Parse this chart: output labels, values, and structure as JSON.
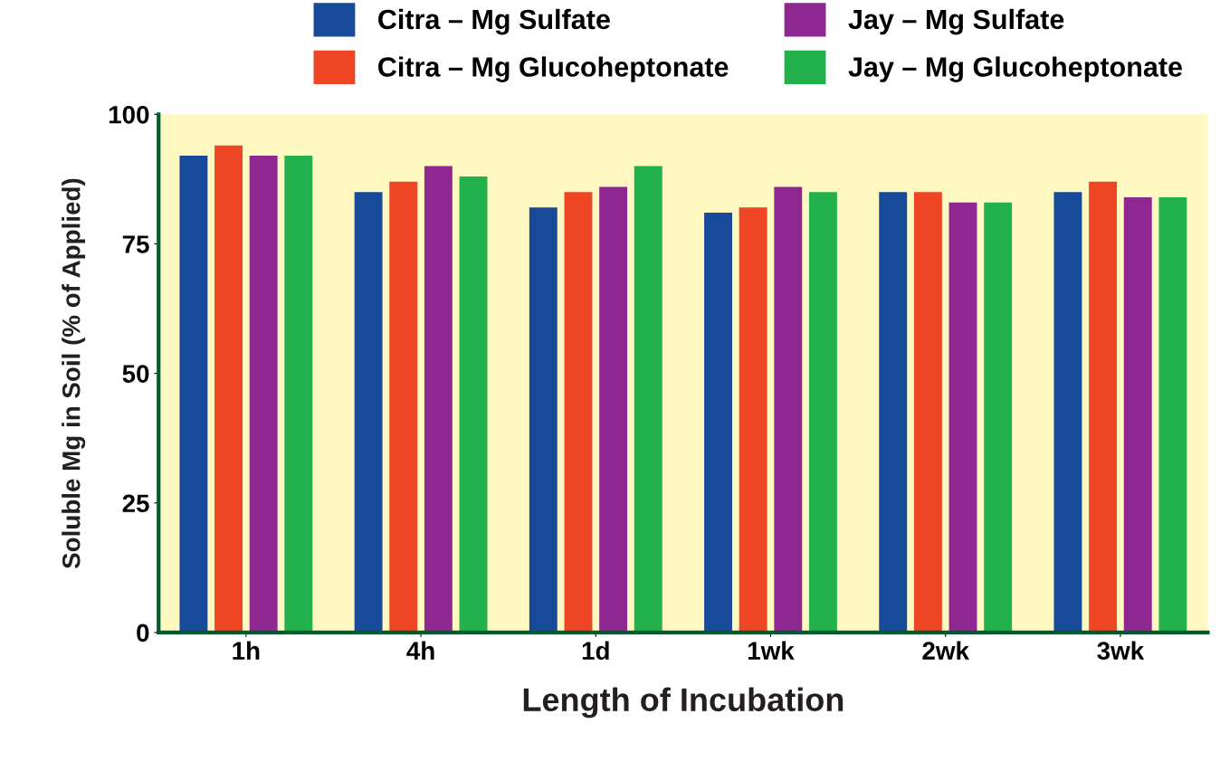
{
  "chart_data": {
    "type": "bar",
    "xlabel": "Length of Incubation",
    "ylabel": "Soluble Mg in Soil (% of Applied)",
    "categories": [
      "1h",
      "4h",
      "1d",
      "1wk",
      "2wk",
      "3wk"
    ],
    "series": [
      {
        "name": "Citra – Mg Sulfate",
        "color": "#174a98",
        "values": [
          92,
          85,
          82,
          81,
          85,
          85
        ]
      },
      {
        "name": "Citra – Mg Glucoheptonate",
        "color": "#ee4524",
        "values": [
          94,
          87,
          85,
          82,
          85,
          87
        ]
      },
      {
        "name": "Jay – Mg Sulfate",
        "color": "#8e278f",
        "values": [
          92,
          90,
          86,
          86,
          83,
          84
        ]
      },
      {
        "name": "Jay – Mg Glucoheptonate",
        "color": "#22b14c",
        "values": [
          92,
          88,
          90,
          85,
          83,
          84
        ]
      }
    ],
    "ylim": [
      0,
      100
    ],
    "yticks": [
      0,
      25,
      50,
      75,
      100
    ],
    "grid": false,
    "legend": "top right"
  }
}
